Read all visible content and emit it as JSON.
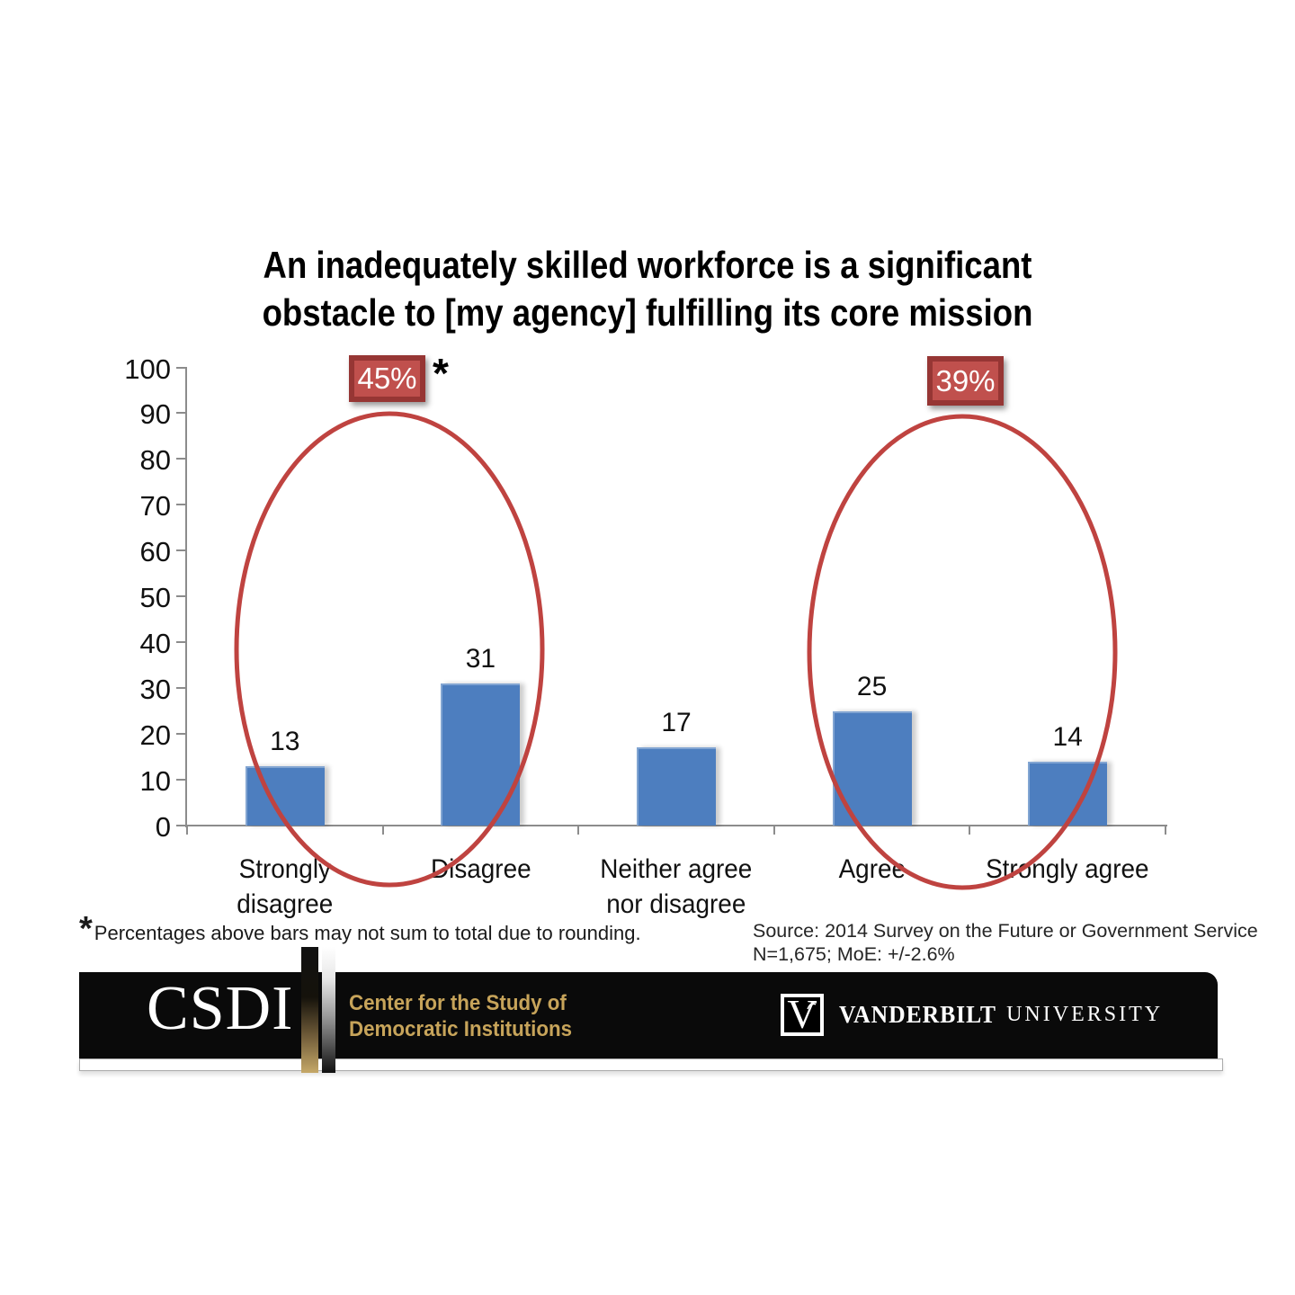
{
  "title": {
    "line1": "An inadequately skilled workforce is a significant",
    "line2": "obstacle to [my agency] fulfilling its core mission"
  },
  "chart_data": {
    "type": "bar",
    "categories": [
      "Strongly disagree",
      "Disagree",
      "Neither agree nor disagree",
      "Agree",
      "Strongly agree"
    ],
    "values": [
      13,
      31,
      17,
      25,
      14
    ],
    "title": "An inadequately skilled workforce is a significant obstacle to [my agency] fulfilling its core mission",
    "xlabel": "",
    "ylabel": "",
    "ylim": [
      0,
      100
    ],
    "ytick_step": 10,
    "grid": false,
    "legend": false,
    "bar_color": "#4d7ebf",
    "annotation_color": "#bf4340",
    "annotations": [
      {
        "label": "45%",
        "note": "*",
        "circled_categories": [
          "Strongly disagree",
          "Disagree"
        ]
      },
      {
        "label": "39%",
        "note": "",
        "circled_categories": [
          "Agree",
          "Strongly agree"
        ]
      }
    ]
  },
  "footnote": {
    "asterisk": "*",
    "text": "Percentages above bars may not sum to total due to rounding."
  },
  "source": {
    "line1": "Source: 2014 Survey on the Future or Government Service",
    "line2": "N=1,675; MoE: +/-2.6%"
  },
  "footer": {
    "csdi": "CSDI",
    "center_line1": "Center for the Study of",
    "center_line2": "Democratic Institutions",
    "v_logo": "V",
    "vanderbilt": "VANDERBILT",
    "university": "UNIVERSITY"
  }
}
